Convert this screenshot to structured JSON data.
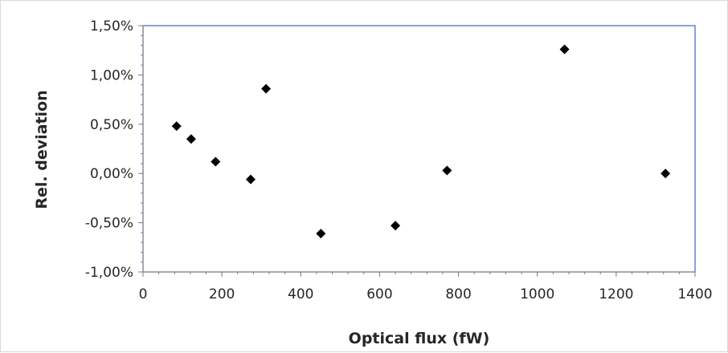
{
  "chart_data": {
    "type": "scatter",
    "xlabel": "Optical flux (fW)",
    "ylabel": "Rel. deviation",
    "xlim": [
      0,
      1400
    ],
    "ylim": [
      -1.0,
      1.5
    ],
    "x_ticks": [
      0,
      200,
      400,
      600,
      800,
      1000,
      1200,
      1400
    ],
    "x_tick_labels": [
      "0",
      "200",
      "400",
      "600",
      "800",
      "1000",
      "1200",
      "1400"
    ],
    "y_ticks": [
      -1.0,
      -0.5,
      0.0,
      0.5,
      1.0,
      1.5
    ],
    "y_tick_labels": [
      "-1,00%",
      "-0,50%",
      "0,00%",
      "0,50%",
      "1,00%",
      "1,50%"
    ],
    "y_unit": "%",
    "grid": false,
    "legend": "none",
    "marker": "diamond",
    "colors": {
      "marker": "#000000",
      "plot_border": "#4472c4",
      "axis": "#808080"
    },
    "series": [
      {
        "points": [
          {
            "x": 85,
            "y": 0.48
          },
          {
            "x": 122,
            "y": 0.35
          },
          {
            "x": 184,
            "y": 0.12
          },
          {
            "x": 273,
            "y": -0.06
          },
          {
            "x": 312,
            "y": 0.86
          },
          {
            "x": 451,
            "y": -0.61
          },
          {
            "x": 640,
            "y": -0.53
          },
          {
            "x": 771,
            "y": 0.03
          },
          {
            "x": 1069,
            "y": 1.26
          },
          {
            "x": 1325,
            "y": 0.0
          }
        ]
      }
    ]
  }
}
